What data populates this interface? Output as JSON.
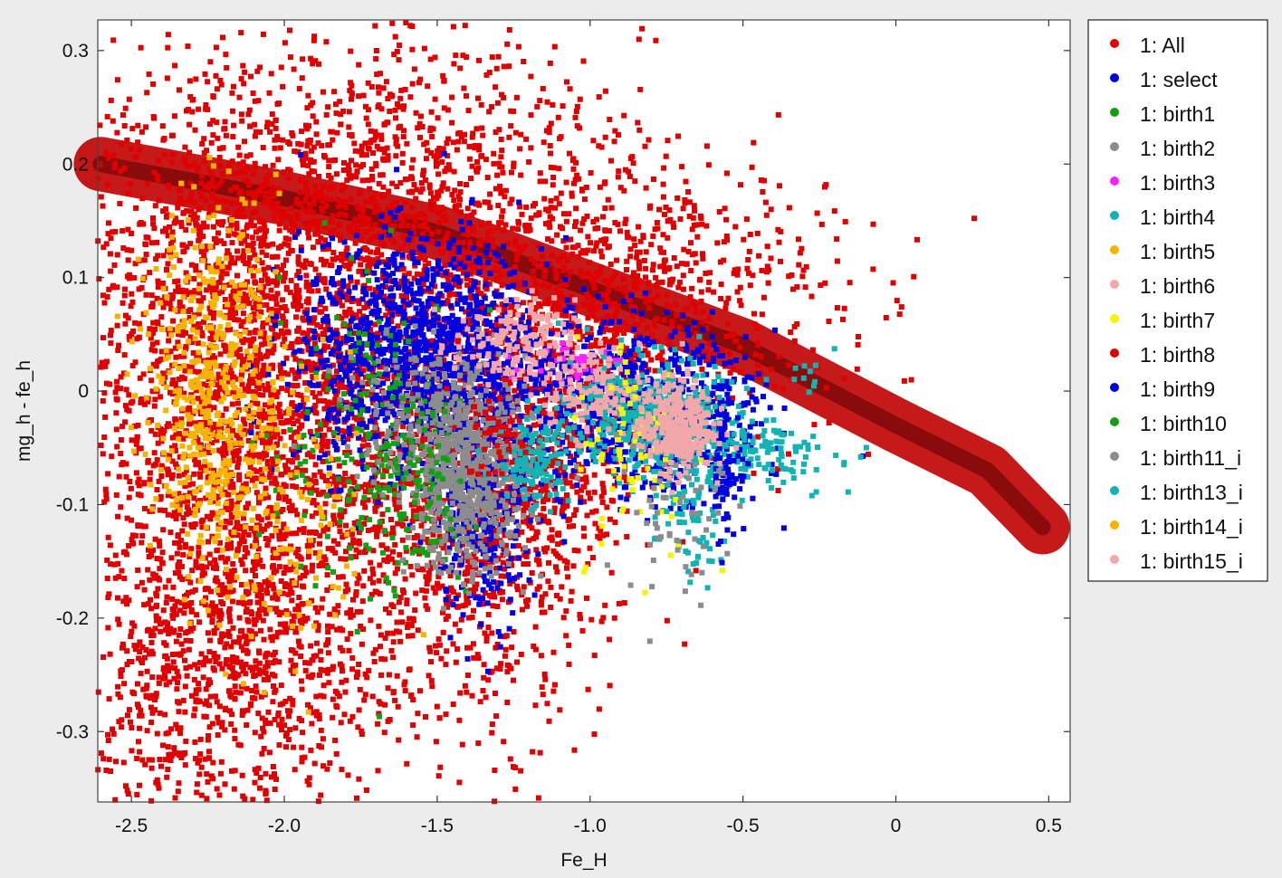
{
  "chart_data": {
    "type": "scatter",
    "xlabel": "Fe_H",
    "ylabel": "mg_h - fe_h",
    "xlim": [
      -2.61,
      0.57
    ],
    "ylim": [
      -0.362,
      0.327
    ],
    "x_ticks": [
      -2.5,
      -2.0,
      -1.5,
      -1.0,
      -0.5,
      0,
      0.5
    ],
    "x_tick_labels": [
      "-2.5",
      "-2.0",
      "-1.5",
      "-1.0",
      "-0.5",
      "0",
      "0.5"
    ],
    "y_ticks": [
      0.3,
      0.2,
      0.1,
      0,
      -0.1,
      -0.2,
      -0.3
    ],
    "y_tick_labels": [
      "0.3",
      "0.2",
      "0.1",
      "0",
      "-0.1",
      "-0.2",
      "-0.3"
    ],
    "grid": false,
    "legend_position": "right-outside-top",
    "series": [
      {
        "name": "1: All",
        "color": "#e00000",
        "clusters": [
          {
            "x": -2.1,
            "y": -0.05,
            "sx": 0.3,
            "sy": 0.13,
            "n": 2200
          },
          {
            "x": -1.9,
            "y": 0.1,
            "sx": 0.45,
            "sy": 0.1,
            "n": 1500
          },
          {
            "x": -1.4,
            "y": -0.1,
            "sx": 0.22,
            "sy": 0.1,
            "n": 900
          },
          {
            "x": -2.2,
            "y": -0.25,
            "sx": 0.25,
            "sy": 0.07,
            "n": 700
          },
          {
            "x": -0.9,
            "y": 0.08,
            "sx": 0.35,
            "sy": 0.06,
            "n": 800
          },
          {
            "x": -1.6,
            "y": 0.2,
            "sx": 0.4,
            "sy": 0.05,
            "n": 500
          },
          {
            "x": -1.2,
            "y": -0.05,
            "sx": 0.18,
            "sy": 0.08,
            "n": 600
          }
        ],
        "ridge": [
          [
            -2.6,
            0.2
          ],
          [
            -2.0,
            0.17
          ],
          [
            -1.5,
            0.14
          ],
          [
            -1.0,
            0.09
          ],
          [
            -0.5,
            0.04
          ],
          [
            0.0,
            -0.03
          ],
          [
            0.3,
            -0.07
          ],
          [
            0.48,
            -0.12
          ]
        ]
      },
      {
        "name": "1: select",
        "color": "#0000e0",
        "clusters": [
          {
            "x": -1.55,
            "y": 0.03,
            "sx": 0.2,
            "sy": 0.05,
            "n": 1200
          },
          {
            "x": -0.75,
            "y": -0.03,
            "sx": 0.15,
            "sy": 0.03,
            "n": 500
          },
          {
            "x": -1.35,
            "y": -0.1,
            "sx": 0.08,
            "sy": 0.05,
            "n": 300
          },
          {
            "x": -1.0,
            "y": 0.0,
            "sx": 0.25,
            "sy": 0.04,
            "n": 400
          }
        ]
      },
      {
        "name": "1: birth1",
        "color": "#14a014",
        "clusters": [
          {
            "x": -1.7,
            "y": -0.05,
            "sx": 0.15,
            "sy": 0.07,
            "n": 200
          }
        ]
      },
      {
        "name": "1: birth2",
        "color": "#8c8c8c",
        "clusters": [
          {
            "x": -1.4,
            "y": -0.08,
            "sx": 0.1,
            "sy": 0.04,
            "n": 600
          },
          {
            "x": -1.5,
            "y": -0.02,
            "sx": 0.15,
            "sy": 0.03,
            "n": 200
          }
        ]
      },
      {
        "name": "1: birth3",
        "color": "#ff20ff",
        "clusters": [
          {
            "x": -1.05,
            "y": 0.025,
            "sx": 0.08,
            "sy": 0.01,
            "n": 40
          }
        ]
      },
      {
        "name": "1: birth4",
        "color": "#10b4b4",
        "clusters": [
          {
            "x": -0.82,
            "y": -0.02,
            "sx": 0.12,
            "sy": 0.025,
            "n": 400
          },
          {
            "x": -1.18,
            "y": -0.06,
            "sx": 0.06,
            "sy": 0.02,
            "n": 120
          },
          {
            "x": -0.48,
            "y": -0.055,
            "sx": 0.14,
            "sy": 0.015,
            "n": 150
          },
          {
            "x": -0.68,
            "y": -0.11,
            "sx": 0.06,
            "sy": 0.03,
            "n": 80
          }
        ]
      },
      {
        "name": "1: birth5",
        "color": "#f5b400",
        "clusters": [
          {
            "x": -2.22,
            "y": 0.0,
            "sx": 0.1,
            "sy": 0.08,
            "n": 400
          },
          {
            "x": -2.0,
            "y": -0.12,
            "sx": 0.15,
            "sy": 0.07,
            "n": 120
          }
        ]
      },
      {
        "name": "1: birth6",
        "color": "#f2a8a8",
        "clusters": [
          {
            "x": -1.25,
            "y": 0.04,
            "sx": 0.1,
            "sy": 0.02,
            "n": 150
          },
          {
            "x": -1.0,
            "y": 0.0,
            "sx": 0.08,
            "sy": 0.02,
            "n": 120
          }
        ]
      },
      {
        "name": "1: birth7",
        "color": "#f5f500",
        "clusters": [
          {
            "x": -0.85,
            "y": -0.05,
            "sx": 0.1,
            "sy": 0.05,
            "n": 80
          }
        ]
      },
      {
        "name": "1: birth8",
        "color": "#e00000",
        "clusters": [
          {
            "x": -1.3,
            "y": -0.04,
            "sx": 0.05,
            "sy": 0.02,
            "n": 40
          }
        ]
      },
      {
        "name": "1: birth9",
        "color": "#0000e0",
        "clusters": [
          {
            "x": -0.55,
            "y": -0.07,
            "sx": 0.03,
            "sy": 0.03,
            "n": 60
          }
        ]
      },
      {
        "name": "1: birth10",
        "color": "#14a014",
        "clusters": [
          {
            "x": -1.55,
            "y": -0.08,
            "sx": 0.06,
            "sy": 0.04,
            "n": 60
          }
        ]
      },
      {
        "name": "1: birth11_i",
        "color": "#8c8c8c",
        "clusters": [
          {
            "x": -0.72,
            "y": -0.1,
            "sx": 0.08,
            "sy": 0.04,
            "n": 60
          }
        ]
      },
      {
        "name": "1: birth13_i",
        "color": "#10b4b4",
        "clusters": [
          {
            "x": -0.28,
            "y": 0.01,
            "sx": 0.05,
            "sy": 0.01,
            "n": 10
          }
        ]
      },
      {
        "name": "1: birth14_i",
        "color": "#f5b400",
        "clusters": [
          {
            "x": -2.3,
            "y": 0.05,
            "sx": 0.1,
            "sy": 0.05,
            "n": 60
          }
        ]
      },
      {
        "name": "1: birth15_i",
        "color": "#f2a8a8",
        "clusters": [
          {
            "x": -0.72,
            "y": -0.03,
            "sx": 0.06,
            "sy": 0.02,
            "n": 350
          }
        ]
      }
    ]
  }
}
